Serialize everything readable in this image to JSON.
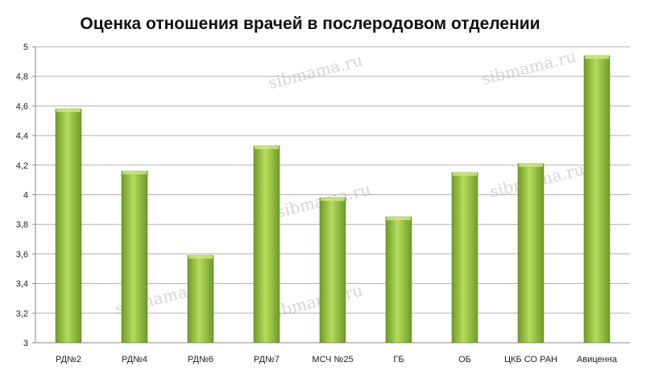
{
  "chart_data": {
    "type": "bar",
    "title": "Оценка отношения врачей в послеродовом отделении",
    "categories": [
      "РД№2",
      "РД№4",
      "РД№6",
      "РД№7",
      "МСЧ №25",
      "ГБ",
      "ОБ",
      "ЦКБ СО РАН",
      "Авиценна"
    ],
    "values": [
      4.58,
      4.16,
      3.59,
      4.33,
      3.98,
      3.85,
      4.15,
      4.21,
      4.94
    ],
    "ylim": [
      3,
      5
    ],
    "yticks": [
      "3",
      "3,2",
      "3,4",
      "3,6",
      "3,8",
      "4",
      "4,2",
      "4,4",
      "4,6",
      "4,8",
      "5"
    ],
    "ytick_values": [
      3,
      3.2,
      3.4,
      3.6,
      3.8,
      4,
      4.2,
      4.4,
      4.6,
      4.8,
      5
    ],
    "grid": true,
    "legend": "none",
    "bar_color": "#8fbf3a",
    "bar_color_light": "#b5dc5e",
    "bar_color_dark": "#6e9a26"
  },
  "watermark": "sibmama.ru"
}
